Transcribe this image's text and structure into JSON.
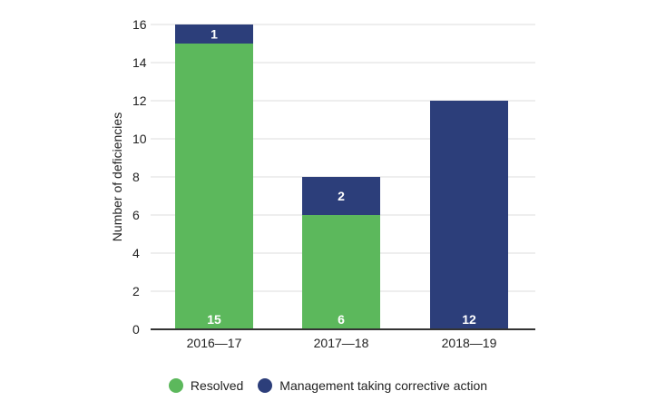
{
  "chart_data": {
    "type": "bar",
    "stacked": true,
    "categories": [
      "2016—17",
      "2017—18",
      "2018—19"
    ],
    "series": [
      {
        "name": "Resolved",
        "values": [
          15,
          6,
          0
        ],
        "color": "#5cb85c"
      },
      {
        "name": "Management taking corrective action",
        "values": [
          1,
          2,
          12
        ],
        "color": "#2c3e7a"
      }
    ],
    "data_labels": [
      {
        "category": "2016—17",
        "series": "Resolved",
        "label": "15"
      },
      {
        "category": "2016—17",
        "series": "Management taking corrective action",
        "label": "1"
      },
      {
        "category": "2017—18",
        "series": "Resolved",
        "label": "6"
      },
      {
        "category": "2017—18",
        "series": "Management taking corrective action",
        "label": "2"
      },
      {
        "category": "2018—19",
        "series": "Management taking corrective action",
        "label": "12"
      }
    ],
    "title": "",
    "xlabel": "",
    "ylabel": "Number of deficiencies",
    "ylim": [
      0,
      16
    ],
    "yticks": [
      0,
      2,
      4,
      6,
      8,
      10,
      12,
      14,
      16
    ],
    "grid": true,
    "legend_position": "bottom"
  }
}
